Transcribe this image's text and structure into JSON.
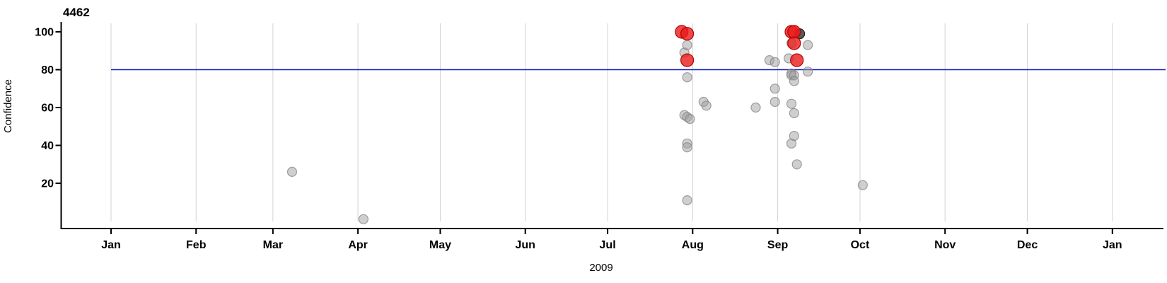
{
  "chart_data": {
    "type": "scatter",
    "title": "4462",
    "ylabel": "Confidence",
    "xlabel": "2009",
    "x_axis": {
      "start": "2009-01-01",
      "end": "2010-01-01",
      "tick_labels": [
        "Jan",
        "Feb",
        "Mar",
        "Apr",
        "May",
        "Jun",
        "Jul",
        "Aug",
        "Sep",
        "Oct",
        "Nov",
        "Dec",
        "Jan"
      ],
      "tick_day_offsets": [
        0,
        31,
        59,
        90,
        120,
        151,
        181,
        212,
        243,
        273,
        304,
        334,
        365
      ]
    },
    "y_axis": {
      "ticks": [
        20,
        40,
        60,
        80,
        100
      ],
      "range": [
        0,
        105
      ]
    },
    "grid": "vertical month gridlines only",
    "legend": "none",
    "threshold_line": {
      "value": 80,
      "color": "#1515c2"
    },
    "colors": {
      "gray_point_fill": "#a0a0a0",
      "gray_point_stroke": "#7e7e7e",
      "red_point_fill": "#e81c1c",
      "red_point_stroke": "#b50000",
      "dark_point_fill": "#3c3c3c",
      "dark_point_stroke": "#1e1e1e",
      "gridline": "#d3d3d3",
      "axis": "#000000",
      "background": "#ffffff"
    },
    "point_styles": {
      "gray": {
        "radius": 6.5,
        "opacity": 0.5
      },
      "dark": {
        "radius": 7,
        "opacity": 0.85
      },
      "red": {
        "radius": 9,
        "opacity": 0.8
      }
    },
    "points": [
      {
        "date": "2009-03-08",
        "confidence": 26,
        "color": "gray"
      },
      {
        "date": "2009-04-03",
        "confidence": 1,
        "color": "gray"
      },
      {
        "date": "2009-07-28",
        "confidence": 100,
        "color": "red"
      },
      {
        "date": "2009-07-29",
        "confidence": 89,
        "color": "gray"
      },
      {
        "date": "2009-07-29",
        "confidence": 56,
        "color": "gray"
      },
      {
        "date": "2009-07-30",
        "confidence": 99,
        "color": "red"
      },
      {
        "date": "2009-07-30",
        "confidence": 93,
        "color": "gray"
      },
      {
        "date": "2009-07-30",
        "confidence": 85,
        "color": "red"
      },
      {
        "date": "2009-07-30",
        "confidence": 76,
        "color": "gray"
      },
      {
        "date": "2009-07-30",
        "confidence": 55,
        "color": "gray"
      },
      {
        "date": "2009-07-30",
        "confidence": 41,
        "color": "gray"
      },
      {
        "date": "2009-07-30",
        "confidence": 39,
        "color": "gray"
      },
      {
        "date": "2009-07-30",
        "confidence": 11,
        "color": "gray"
      },
      {
        "date": "2009-07-31",
        "confidence": 54,
        "color": "gray"
      },
      {
        "date": "2009-08-05",
        "confidence": 63,
        "color": "gray"
      },
      {
        "date": "2009-08-06",
        "confidence": 61,
        "color": "gray"
      },
      {
        "date": "2009-08-24",
        "confidence": 60,
        "color": "gray"
      },
      {
        "date": "2009-08-29",
        "confidence": 85,
        "color": "gray"
      },
      {
        "date": "2009-08-31",
        "confidence": 84,
        "color": "gray"
      },
      {
        "date": "2009-08-31",
        "confidence": 70,
        "color": "gray"
      },
      {
        "date": "2009-08-31",
        "confidence": 63,
        "color": "gray"
      },
      {
        "date": "2009-09-05",
        "confidence": 86,
        "color": "gray"
      },
      {
        "date": "2009-09-06",
        "confidence": 100,
        "color": "red"
      },
      {
        "date": "2009-09-06",
        "confidence": 94,
        "color": "gray"
      },
      {
        "date": "2009-09-06",
        "confidence": 78,
        "color": "gray"
      },
      {
        "date": "2009-09-06",
        "confidence": 77,
        "color": "gray"
      },
      {
        "date": "2009-09-06",
        "confidence": 62,
        "color": "gray"
      },
      {
        "date": "2009-09-06",
        "confidence": 41,
        "color": "gray"
      },
      {
        "date": "2009-09-07",
        "confidence": 100,
        "color": "red"
      },
      {
        "date": "2009-09-07",
        "confidence": 94,
        "color": "red"
      },
      {
        "date": "2009-09-07",
        "confidence": 77,
        "color": "gray"
      },
      {
        "date": "2009-09-07",
        "confidence": 74,
        "color": "gray"
      },
      {
        "date": "2009-09-07",
        "confidence": 57,
        "color": "gray"
      },
      {
        "date": "2009-09-07",
        "confidence": 45,
        "color": "gray"
      },
      {
        "date": "2009-09-08",
        "confidence": 85,
        "color": "red"
      },
      {
        "date": "2009-09-08",
        "confidence": 30,
        "color": "gray"
      },
      {
        "date": "2009-09-09",
        "confidence": 99,
        "color": "dark"
      },
      {
        "date": "2009-09-12",
        "confidence": 93,
        "color": "gray"
      },
      {
        "date": "2009-09-12",
        "confidence": 79,
        "color": "gray"
      },
      {
        "date": "2009-10-02",
        "confidence": 19,
        "color": "gray"
      }
    ]
  }
}
